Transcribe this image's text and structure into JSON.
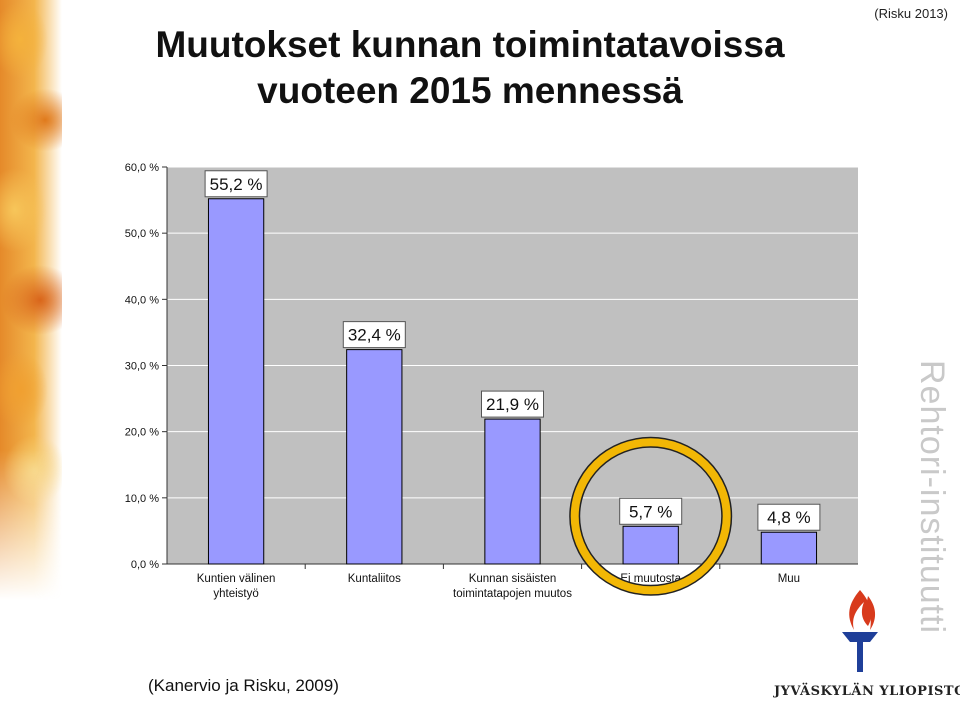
{
  "slide": {
    "title_line1": "Muutokset kunnan toimintatavoissa",
    "title_line2": "vuoteen 2015 mennessä",
    "source_top": "(Risku 2013)",
    "source_bottom": "(Kanervio ja Risku, 2009)"
  },
  "branding": {
    "institute": "Rehtori-instituutti",
    "university": "JYVÄSKYLÄN YLIOPISTO"
  },
  "colors": {
    "bar": "#9999ff",
    "plot_background": "#c0c0c0",
    "highlight_circle": "#f2b705",
    "torch_red": "#d83a1c",
    "torch_blue": "#1f3f99"
  },
  "chart_data": {
    "type": "bar",
    "categories": [
      [
        "Kuntien välinen",
        "yhteistyö"
      ],
      [
        "Kuntaliitos"
      ],
      [
        "Kunnan sisäisten",
        "toimintatapojen muutos"
      ],
      [
        "Ei muutosta"
      ],
      [
        "Muu"
      ]
    ],
    "values": [
      55.2,
      32.4,
      21.9,
      5.7,
      4.8
    ],
    "data_labels": [
      "55,2 %",
      "32,4 %",
      "21,9 %",
      "5,7 %",
      "4,8 %"
    ],
    "y_ticks": [
      "0,0 %",
      "10,0 %",
      "20,0 %",
      "30,0 %",
      "40,0 %",
      "50,0 %",
      "60,0 %"
    ],
    "ylim": [
      0,
      60
    ],
    "grid": true,
    "highlighted_category": 3
  }
}
